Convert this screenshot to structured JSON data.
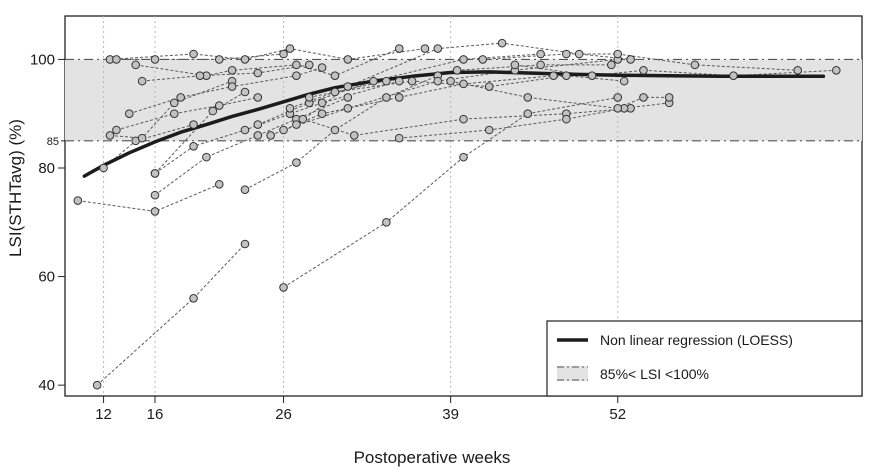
{
  "chart_data": {
    "type": "scatter",
    "xlabel": "Postoperative weeks",
    "ylabel": "LSI(STHTavg) (%)",
    "x_ticks": [
      12,
      16,
      26,
      39,
      52
    ],
    "y_ticks": [
      40,
      60,
      80,
      85,
      100
    ],
    "xlim": [
      9,
      71
    ],
    "ylim": [
      38,
      108
    ],
    "grid": "dotted vertical lines at x ticks",
    "reference_band": {
      "low": 85,
      "high": 100,
      "fill": "#e3e3e3"
    },
    "reference_band_label": "85%< LSI <100%",
    "series": [
      {
        "name": "Non linear regression (LOESS)",
        "kind": "line",
        "x": [
          10.5,
          12,
          14,
          16,
          18,
          20,
          22,
          24,
          26,
          28,
          30,
          33,
          36,
          39,
          42,
          45,
          48,
          52,
          56,
          60,
          64,
          68
        ],
        "y": [
          78.5,
          80.5,
          82.8,
          84.8,
          86.6,
          88,
          89.5,
          90.8,
          92.2,
          93.6,
          94.8,
          96,
          96.9,
          97.6,
          97.7,
          97.5,
          97.3,
          97.1,
          97.0,
          96.9,
          96.9,
          96.9
        ]
      },
      {
        "name": "",
        "kind": "patient trajectories",
        "trajectories": [
          [
            [
              11.5,
              40
            ],
            [
              19,
              56
            ],
            [
              23,
              66
            ]
          ],
          [
            [
              10,
              74
            ],
            [
              16,
              72
            ],
            [
              21,
              77
            ]
          ],
          [
            [
              16,
              79
            ],
            [
              20.5,
              90.5
            ],
            [
              23,
              94
            ]
          ],
          [
            [
              12,
              80
            ],
            [
              14.5,
              85
            ],
            [
              19,
              88
            ]
          ],
          [
            [
              12.5,
              86
            ],
            [
              15,
              85.5
            ],
            [
              17.5,
              92
            ],
            [
              22,
              96
            ]
          ],
          [
            [
              13,
              87
            ],
            [
              17.5,
              90
            ],
            [
              21,
              91.5
            ],
            [
              24,
              93
            ]
          ],
          [
            [
              14.5,
              99
            ],
            [
              20,
              97
            ],
            [
              22,
              98
            ],
            [
              27,
              99
            ],
            [
              30,
              97
            ],
            [
              35,
              102
            ]
          ],
          [
            [
              12.5,
              100
            ],
            [
              19,
              101
            ],
            [
              23,
              100
            ],
            [
              26.5,
              102
            ],
            [
              31,
              100
            ],
            [
              37,
              102
            ]
          ],
          [
            [
              13,
              100
            ],
            [
              16,
              100
            ],
            [
              21,
              100
            ],
            [
              26,
              101
            ]
          ],
          [
            [
              15,
              96
            ],
            [
              19.5,
              97
            ],
            [
              24,
              97.5
            ],
            [
              28,
              99
            ]
          ],
          [
            [
              14,
              90
            ],
            [
              18,
              93
            ],
            [
              22,
              95
            ],
            [
              27,
              97
            ],
            [
              29,
              98.5
            ]
          ],
          [
            [
              16,
              75
            ],
            [
              20,
              82
            ],
            [
              24,
              86
            ],
            [
              27,
              89
            ],
            [
              31,
              93
            ]
          ],
          [
            [
              16,
              79
            ],
            [
              19,
              84
            ],
            [
              23,
              87
            ],
            [
              26.5,
              90
            ],
            [
              29,
              92
            ],
            [
              35,
              96
            ]
          ],
          [
            [
              23,
              76
            ],
            [
              27,
              81
            ],
            [
              30,
              87
            ],
            [
              34,
              93
            ],
            [
              38,
              97
            ]
          ],
          [
            [
              26,
              58
            ],
            [
              34,
              70
            ],
            [
              40,
              82
            ],
            [
              45,
              90
            ],
            [
              52,
              93
            ]
          ],
          [
            [
              24,
              88
            ],
            [
              28,
              92
            ],
            [
              33,
              96
            ],
            [
              40,
              100
            ],
            [
              46,
              101
            ]
          ],
          [
            [
              25,
              86
            ],
            [
              29,
              90
            ],
            [
              35,
              93
            ],
            [
              40,
              95.5
            ],
            [
              47,
              97
            ]
          ],
          [
            [
              26,
              87
            ],
            [
              31,
              91
            ],
            [
              38,
              96
            ],
            [
              44,
              98
            ],
            [
              52,
              100
            ]
          ],
          [
            [
              27,
              88
            ],
            [
              31,
              95
            ],
            [
              38,
              102
            ],
            [
              43,
              103
            ],
            [
              49,
              101
            ],
            [
              53,
              100
            ]
          ],
          [
            [
              26.5,
              91
            ],
            [
              30,
              94
            ],
            [
              36,
              96
            ],
            [
              42,
              95
            ],
            [
              48,
              97
            ],
            [
              52.5,
              96
            ]
          ],
          [
            [
              27.5,
              89
            ],
            [
              31.5,
              86
            ],
            [
              40,
              89
            ],
            [
              48,
              90
            ],
            [
              53,
              91
            ]
          ],
          [
            [
              28,
              93
            ],
            [
              34,
              96
            ],
            [
              39.5,
              98
            ],
            [
              46,
              99
            ],
            [
              51.5,
              99
            ]
          ],
          [
            [
              35,
              85.5
            ],
            [
              42,
              87
            ],
            [
              48,
              89
            ],
            [
              52.5,
              91
            ],
            [
              56,
              92
            ]
          ],
          [
            [
              39,
              96
            ],
            [
              45,
              93
            ],
            [
              52,
              91
            ],
            [
              54,
              93
            ],
            [
              56,
              93
            ]
          ],
          [
            [
              41.5,
              100
            ],
            [
              48,
              101
            ],
            [
              52,
              101
            ],
            [
              58,
              99
            ],
            [
              66,
              98
            ]
          ],
          [
            [
              44,
              99
            ],
            [
              50,
              97
            ],
            [
              54,
              98
            ],
            [
              61,
              97
            ],
            [
              69,
              98
            ]
          ]
        ]
      }
    ],
    "legend": {
      "position": "bottom-right",
      "entries": [
        {
          "label": "Non linear regression (LOESS)",
          "style": "thick-line"
        },
        {
          "label": "85%< LSI <100%",
          "style": "band"
        }
      ]
    },
    "colors": {
      "loess": "#1c1c1c",
      "points_fill": "#c2c2c2",
      "points_stroke": "#333333",
      "trajectory": "#5a5a5a",
      "band": "#e3e3e3",
      "band_line": "#555555",
      "grid": "#b8b8b8"
    }
  }
}
